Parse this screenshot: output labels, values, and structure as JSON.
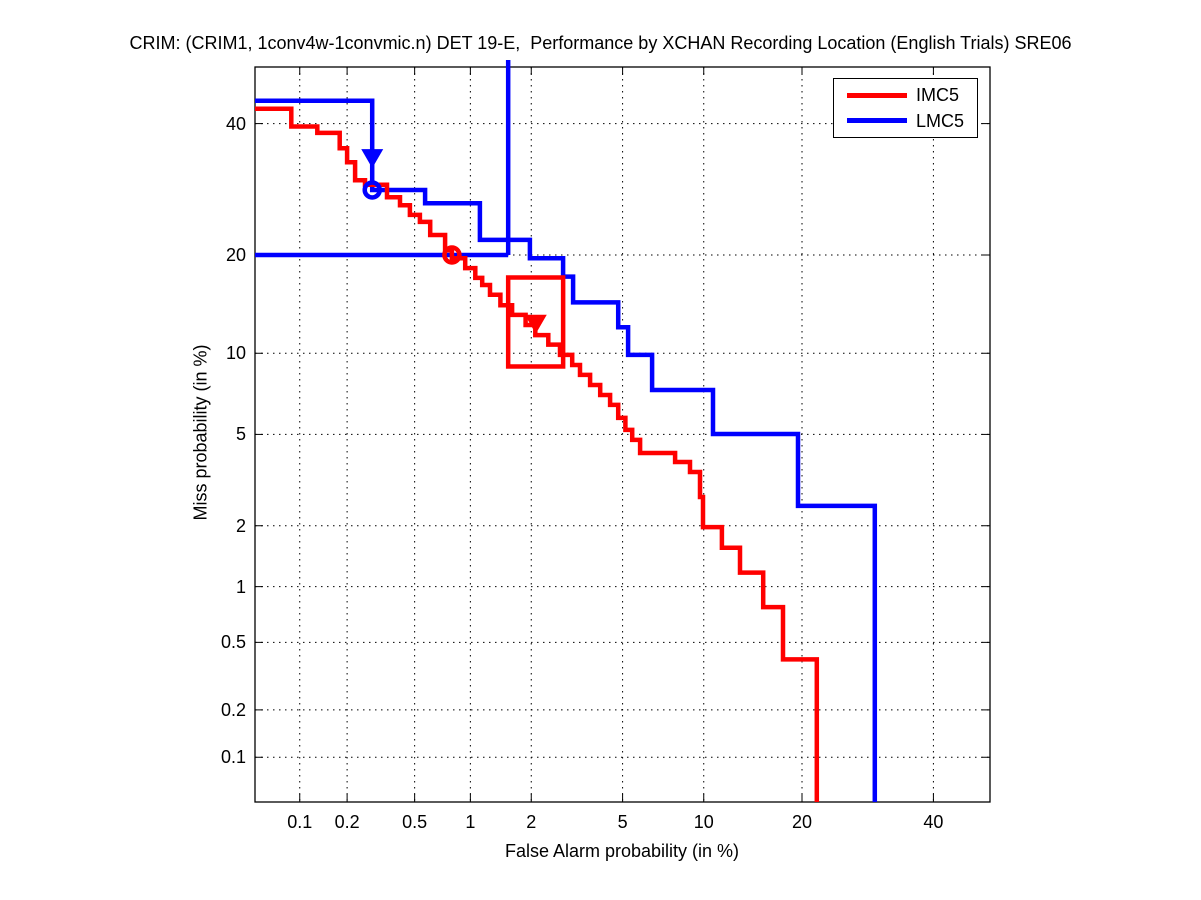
{
  "title": "CRIM: (CRIM1, 1conv4w-1convmic.n) DET 19-E,  Performance by XCHAN Recording Location (English Trials) SRE06",
  "axes": {
    "xlabel": "False Alarm probability (in %)",
    "ylabel": "Miss probability (in %)",
    "x_tick_labels": [
      "0.1",
      "0.2",
      "0.5",
      "1",
      "2",
      "5",
      "10",
      "20",
      "40"
    ],
    "y_tick_labels": [
      "40",
      "20",
      "10",
      "5",
      "2",
      "1",
      "0.5",
      "0.2",
      "0.1"
    ],
    "x_ticks_pct": [
      0.1,
      0.2,
      0.5,
      1,
      2,
      5,
      10,
      20,
      40
    ],
    "y_ticks_pct": [
      40,
      20,
      10,
      5,
      2,
      1,
      0.5,
      0.2,
      0.1
    ],
    "scale": "probit",
    "x_range_pct": [
      0.05,
      50
    ],
    "y_range_pct": [
      0.05,
      50
    ],
    "grid": "dotted"
  },
  "legend": {
    "position": "top-right",
    "items": [
      {
        "label": "IMC5",
        "color": "#ff0000"
      },
      {
        "label": "LMC5",
        "color": "#0000ff"
      }
    ]
  },
  "chart_data": {
    "type": "line",
    "subtype": "DET-curve-staircase",
    "title": "CRIM: (CRIM1, 1conv4w-1convmic.n) DET 19-E,  Performance by XCHAN Recording Location (English Trials) SRE06",
    "xlabel": "False Alarm probability (in %)",
    "ylabel": "Miss probability (in %)",
    "x_scale": "probit",
    "y_scale": "probit",
    "xlim": [
      0.05,
      50
    ],
    "ylim": [
      0.05,
      50
    ],
    "series": [
      {
        "name": "LMC5",
        "color": "#0000ff",
        "points": [
          [
            0.05,
            44.0
          ],
          [
            0.284,
            44.0
          ],
          [
            0.284,
            29.1
          ],
          [
            0.572,
            29.1
          ],
          [
            0.572,
            27.1
          ],
          [
            1.12,
            27.1
          ],
          [
            1.12,
            21.95
          ],
          [
            1.97,
            21.95
          ],
          [
            1.97,
            19.6
          ],
          [
            2.8,
            19.6
          ],
          [
            2.8,
            17.4
          ],
          [
            3.1,
            17.4
          ],
          [
            3.1,
            14.6
          ],
          [
            4.8,
            14.6
          ],
          [
            4.8,
            12.2
          ],
          [
            5.26,
            12.2
          ],
          [
            5.26,
            9.87
          ],
          [
            6.52,
            9.87
          ],
          [
            6.52,
            7.41
          ],
          [
            10.75,
            7.41
          ],
          [
            10.75,
            5.02
          ],
          [
            19.5,
            5.02
          ],
          [
            19.5,
            2.47
          ],
          [
            30.3,
            2.47
          ],
          [
            30.3,
            0.05
          ]
        ]
      },
      {
        "name": "IMC5",
        "color": "#ff0000",
        "points": [
          [
            0.05,
            42.6
          ],
          [
            0.088,
            42.6
          ],
          [
            0.088,
            39.5
          ],
          [
            0.13,
            39.5
          ],
          [
            0.13,
            38.4
          ],
          [
            0.18,
            38.4
          ],
          [
            0.18,
            35.8
          ],
          [
            0.2,
            35.8
          ],
          [
            0.2,
            33.5
          ],
          [
            0.224,
            33.5
          ],
          [
            0.224,
            30.6
          ],
          [
            0.257,
            30.6
          ],
          [
            0.257,
            29.9
          ],
          [
            0.347,
            29.9
          ],
          [
            0.347,
            28.0
          ],
          [
            0.413,
            28.0
          ],
          [
            0.413,
            26.8
          ],
          [
            0.47,
            26.8
          ],
          [
            0.47,
            25.4
          ],
          [
            0.535,
            25.4
          ],
          [
            0.535,
            24.4
          ],
          [
            0.61,
            24.4
          ],
          [
            0.61,
            22.6
          ],
          [
            0.735,
            22.6
          ],
          [
            0.735,
            20.6
          ],
          [
            0.8,
            20.6
          ],
          [
            0.8,
            19.6
          ],
          [
            0.94,
            19.6
          ],
          [
            0.94,
            18.4
          ],
          [
            1.06,
            18.4
          ],
          [
            1.06,
            17.25
          ],
          [
            1.15,
            17.25
          ],
          [
            1.15,
            16.45
          ],
          [
            1.26,
            16.45
          ],
          [
            1.26,
            15.4
          ],
          [
            1.42,
            15.4
          ],
          [
            1.42,
            14.3
          ],
          [
            1.62,
            14.3
          ],
          [
            1.62,
            13.35
          ],
          [
            1.88,
            13.35
          ],
          [
            1.88,
            12.4
          ],
          [
            2.09,
            12.4
          ],
          [
            2.09,
            11.5
          ],
          [
            2.4,
            11.5
          ],
          [
            2.4,
            10.7
          ],
          [
            2.71,
            10.7
          ],
          [
            2.71,
            9.87
          ],
          [
            3.07,
            9.87
          ],
          [
            3.07,
            9.11
          ],
          [
            3.32,
            9.11
          ],
          [
            3.32,
            8.4
          ],
          [
            3.67,
            8.4
          ],
          [
            3.67,
            7.73
          ],
          [
            4.05,
            7.73
          ],
          [
            4.05,
            7.1
          ],
          [
            4.45,
            7.1
          ],
          [
            4.45,
            6.52
          ],
          [
            4.8,
            6.52
          ],
          [
            4.8,
            5.81
          ],
          [
            5.13,
            5.81
          ],
          [
            5.13,
            5.21
          ],
          [
            5.46,
            5.21
          ],
          [
            5.46,
            4.75
          ],
          [
            5.86,
            4.75
          ],
          [
            5.86,
            4.2
          ],
          [
            7.93,
            4.2
          ],
          [
            7.93,
            3.85
          ],
          [
            8.96,
            3.85
          ],
          [
            8.96,
            3.49
          ],
          [
            9.71,
            3.49
          ],
          [
            9.71,
            2.71
          ],
          [
            9.94,
            2.71
          ],
          [
            9.94,
            1.97
          ],
          [
            11.5,
            1.97
          ],
          [
            11.5,
            1.57
          ],
          [
            13.15,
            1.57
          ],
          [
            13.15,
            1.18
          ],
          [
            15.5,
            1.18
          ],
          [
            15.5,
            0.78
          ],
          [
            17.7,
            0.78
          ],
          [
            17.7,
            0.4
          ],
          [
            21.9,
            0.4
          ],
          [
            21.9,
            0.05
          ]
        ]
      }
    ],
    "annotations": [
      {
        "type": "hline",
        "color": "#0000ff",
        "miss": 20.0,
        "fa_from": 0.05,
        "fa_to": 1.55
      },
      {
        "type": "vline",
        "color": "#0000ff",
        "fa": 1.55,
        "miss_from": 50.0,
        "miss_to": 20.0
      },
      {
        "type": "curve",
        "color": "#0000ff"
      },
      {
        "type": "curve2",
        "color": "#ff0000"
      },
      {
        "type": "rect",
        "color": "#ff0000",
        "fa_from": 1.55,
        "fa_to": 2.8,
        "miss_from": 17.3,
        "miss_to": 9.0
      },
      {
        "type": "arrow-down",
        "color": "#0000ff",
        "fa": 0.284,
        "miss": 34.5
      },
      {
        "type": "arrow-down",
        "color": "#ff0000",
        "fa": 2.1,
        "miss": 12.7
      },
      {
        "type": "circle",
        "color": "#0000ff",
        "fa": 0.284,
        "miss": 29.1
      },
      {
        "type": "circle",
        "color": "#ff0000",
        "fa": 0.8,
        "miss": 20.0
      }
    ],
    "legend_entries": [
      "IMC5",
      "LMC5"
    ],
    "legend_position": "top-right"
  }
}
